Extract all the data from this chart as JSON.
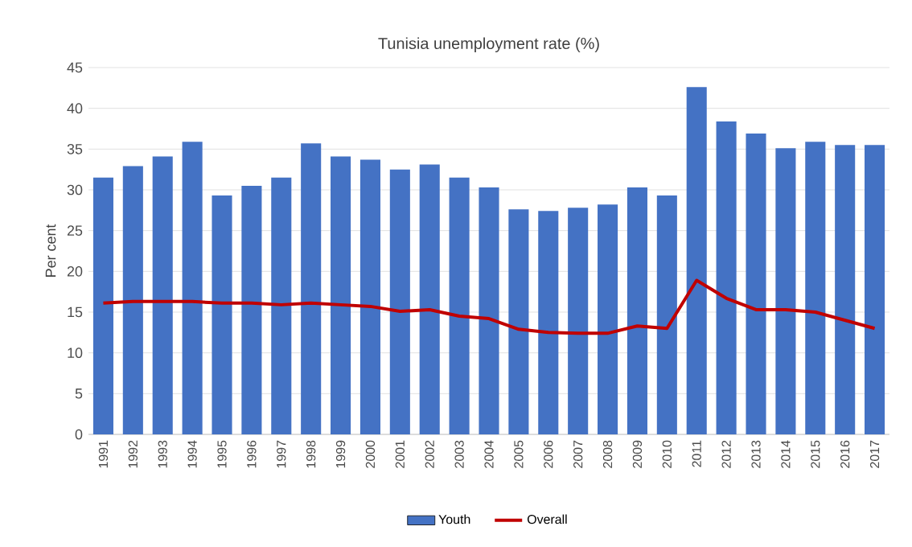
{
  "chart_data": {
    "type": "bar",
    "title": "Tunisia  unemployment  rate (%)",
    "ylabel": "Per cent",
    "categories": [
      "1991",
      "1992",
      "1993",
      "1994",
      "1995",
      "1996",
      "1997",
      "1998",
      "1999",
      "2000",
      "2001",
      "2002",
      "2003",
      "2004",
      "2005",
      "2006",
      "2007",
      "2008",
      "2009",
      "2010",
      "2011",
      "2012",
      "2013",
      "2014",
      "2015",
      "2016",
      "2017"
    ],
    "series": [
      {
        "name": "Youth",
        "color": "#4472c4",
        "values": [
          31.5,
          32.9,
          34.1,
          35.9,
          29.3,
          30.5,
          31.5,
          35.7,
          34.1,
          33.7,
          32.5,
          33.1,
          31.5,
          30.3,
          27.6,
          27.4,
          27.8,
          28.2,
          30.3,
          29.3,
          42.6,
          38.4,
          36.9,
          35.1,
          35.9,
          35.5,
          35.5
        ]
      },
      {
        "name": "Overall",
        "type": "line",
        "color": "#c00000",
        "values": [
          16.1,
          16.3,
          16.3,
          16.3,
          16.1,
          16.1,
          15.9,
          16.1,
          15.9,
          15.7,
          15.1,
          15.3,
          14.5,
          14.2,
          12.9,
          12.5,
          12.4,
          12.4,
          13.3,
          13.0,
          18.9,
          16.7,
          15.3,
          15.3,
          15.0,
          14.0,
          13.0
        ]
      }
    ],
    "ylim": [
      0,
      45
    ],
    "yticks": [
      0,
      5,
      10,
      15,
      20,
      25,
      30,
      35,
      40,
      45
    ],
    "grid": "y",
    "legend": "bottom",
    "marker": "none"
  }
}
